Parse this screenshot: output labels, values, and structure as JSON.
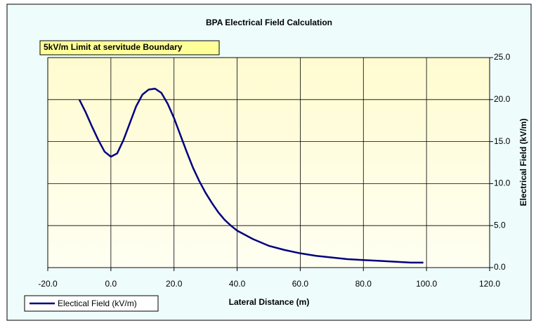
{
  "chart_data": {
    "type": "line",
    "title": "BPA Electrical Field Calculation",
    "annotation": "5kV/m Limit at servitude Boundary",
    "xlabel": "Lateral Distance (m)",
    "ylabel": "Electrical Field (kV/m)",
    "x": [
      -10,
      -8,
      -6,
      -4,
      -2,
      0,
      2,
      4,
      6,
      8,
      10,
      12,
      14,
      16,
      18,
      20,
      22,
      24,
      26,
      28,
      30,
      32,
      34,
      36,
      38,
      40,
      45,
      50,
      55,
      60,
      65,
      70,
      75,
      80,
      85,
      90,
      95,
      99
    ],
    "series": [
      {
        "name": "Electical Field (kV/m)",
        "color": "#000080",
        "values": [
          20.0,
          18.5,
          16.8,
          15.2,
          13.8,
          13.2,
          13.6,
          15.2,
          17.2,
          19.2,
          20.6,
          21.2,
          21.3,
          20.8,
          19.5,
          17.8,
          15.8,
          13.8,
          11.9,
          10.3,
          8.9,
          7.7,
          6.6,
          5.7,
          5.0,
          4.4,
          3.4,
          2.6,
          2.1,
          1.7,
          1.4,
          1.2,
          1.0,
          0.9,
          0.8,
          0.7,
          0.6,
          0.6
        ]
      }
    ],
    "xlim": [
      -20,
      120
    ],
    "xticks": [
      {
        "value": -20,
        "label": "-20.0"
      },
      {
        "value": 0,
        "label": "0.0"
      },
      {
        "value": 20,
        "label": "20.0"
      },
      {
        "value": 40,
        "label": "40.0"
      },
      {
        "value": 60,
        "label": "60.0"
      },
      {
        "value": 80,
        "label": "80.0"
      },
      {
        "value": 100,
        "label": "100.0"
      },
      {
        "value": 120,
        "label": "120.0"
      }
    ],
    "ylim": [
      0,
      25
    ],
    "yticks": [
      {
        "value": 0,
        "label": "0.0"
      },
      {
        "value": 5,
        "label": "5.0"
      },
      {
        "value": 10,
        "label": "10.0"
      },
      {
        "value": 15,
        "label": "15.0"
      },
      {
        "value": 20,
        "label": "20.0"
      },
      {
        "value": 25,
        "label": "25.0"
      }
    ],
    "grid": true,
    "legend": "bottom-left"
  }
}
